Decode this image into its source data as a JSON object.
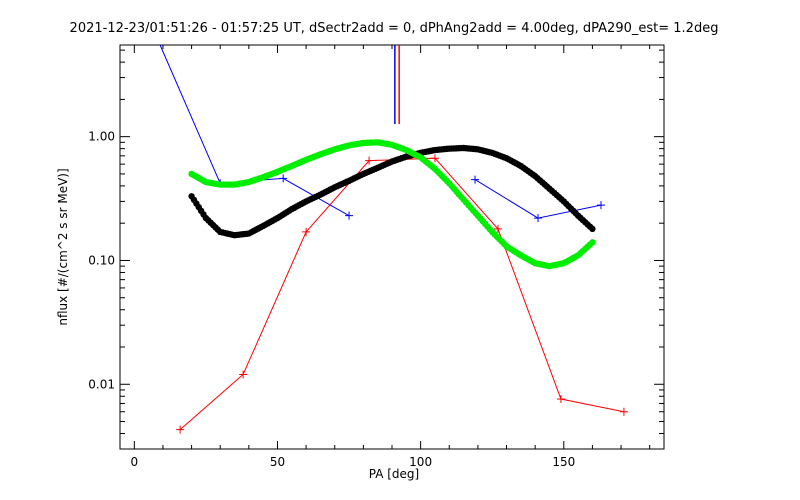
{
  "chart_data": {
    "type": "line",
    "title": "2021-12-23/01:51:26 - 01:57:25 UT, dSectr2add = 0, dPhAng2add = 4.00deg, dPA290_est=   1.2deg",
    "xlabel": "PA [deg]",
    "ylabel": "nflux [#/(cm^2 s sr MeV)]",
    "xlim": [
      -5,
      185
    ],
    "ylim": [
      0.003,
      5.5
    ],
    "yscale": "log",
    "xticks": [
      0,
      50,
      100,
      150
    ],
    "xtick_labels": [
      "0",
      "50",
      "100",
      "150"
    ],
    "yticks": [
      0.01,
      0.1,
      1.0
    ],
    "ytick_labels": [
      "0.01",
      "0.10",
      "1.00"
    ],
    "grid": false,
    "legend": "none",
    "series": [
      {
        "color": "#0000ff",
        "style": "line-plus",
        "segments": [
          [
            [
              9,
              5.5
            ],
            [
              30,
              0.42
            ],
            [
              52,
              0.46
            ],
            [
              75,
              0.23
            ]
          ],
          [
            [
              119,
              0.45
            ],
            [
              141,
              0.22
            ],
            [
              163,
              0.28
            ]
          ]
        ]
      },
      {
        "color": "#ff0000",
        "style": "line-plus",
        "segments": [
          [
            [
              16,
              0.0043
            ],
            [
              38,
              0.012
            ],
            [
              60,
              0.17
            ],
            [
              82,
              0.64
            ],
            [
              105,
              0.67
            ],
            [
              127,
              0.18
            ],
            [
              149,
              0.0076
            ],
            [
              171,
              0.006
            ]
          ]
        ]
      },
      {
        "color": "#000000",
        "style": "dots",
        "segments": [
          [
            [
              20,
              0.33
            ],
            [
              25,
              0.22
            ],
            [
              30,
              0.17
            ],
            [
              35,
              0.16
            ],
            [
              40,
              0.165
            ],
            [
              45,
              0.19
            ],
            [
              50,
              0.22
            ],
            [
              55,
              0.26
            ],
            [
              60,
              0.3
            ],
            [
              65,
              0.34
            ],
            [
              70,
              0.39
            ],
            [
              75,
              0.44
            ],
            [
              80,
              0.5
            ],
            [
              85,
              0.56
            ],
            [
              90,
              0.63
            ],
            [
              95,
              0.69
            ],
            [
              100,
              0.74
            ],
            [
              105,
              0.78
            ],
            [
              110,
              0.8
            ],
            [
              115,
              0.81
            ],
            [
              120,
              0.79
            ],
            [
              125,
              0.74
            ],
            [
              130,
              0.67
            ],
            [
              135,
              0.58
            ],
            [
              140,
              0.48
            ],
            [
              145,
              0.38
            ],
            [
              150,
              0.3
            ],
            [
              155,
              0.23
            ],
            [
              160,
              0.18
            ]
          ]
        ]
      },
      {
        "color": "#00ee00",
        "style": "dots",
        "segments": [
          [
            [
              20,
              0.5
            ],
            [
              25,
              0.43
            ],
            [
              30,
              0.41
            ],
            [
              35,
              0.41
            ],
            [
              40,
              0.43
            ],
            [
              45,
              0.47
            ],
            [
              50,
              0.52
            ],
            [
              55,
              0.58
            ],
            [
              60,
              0.65
            ],
            [
              65,
              0.72
            ],
            [
              70,
              0.79
            ],
            [
              75,
              0.85
            ],
            [
              80,
              0.89
            ],
            [
              85,
              0.9
            ],
            [
              90,
              0.86
            ],
            [
              95,
              0.78
            ],
            [
              100,
              0.68
            ],
            [
              105,
              0.55
            ],
            [
              110,
              0.42
            ],
            [
              115,
              0.31
            ],
            [
              120,
              0.23
            ],
            [
              125,
              0.17
            ],
            [
              130,
              0.13
            ],
            [
              135,
              0.11
            ],
            [
              140,
              0.095
            ],
            [
              145,
              0.09
            ],
            [
              150,
              0.095
            ],
            [
              155,
              0.11
            ],
            [
              160,
              0.14
            ]
          ]
        ]
      }
    ],
    "markers": [
      {
        "x": 91,
        "color": "#0000ff"
      },
      {
        "x": 92.5,
        "color": "#ff0000"
      }
    ]
  }
}
